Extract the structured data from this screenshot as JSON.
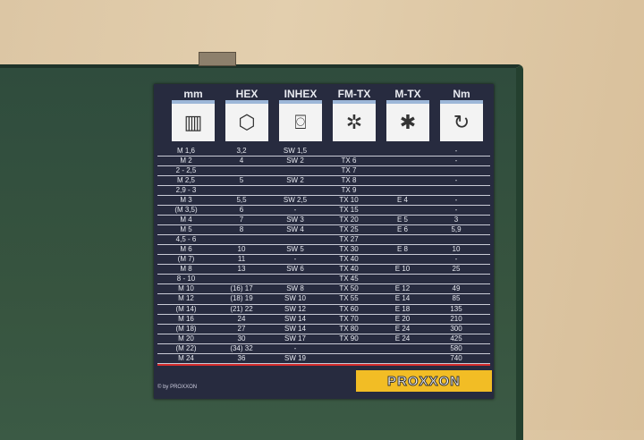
{
  "columns": [
    "mm",
    "HEX",
    "INHEX",
    "FM-TX",
    "M-TX",
    "Nm"
  ],
  "icons": [
    "thread-icon",
    "hex-bolt-icon",
    "inhex-bolt-icon",
    "fm-tx-bolt-icon",
    "m-tx-bolt-icon",
    "torque-icon"
  ],
  "rows": [
    [
      "M 1,6",
      "3,2",
      "SW 1,5",
      "",
      "",
      "-"
    ],
    [
      "M 2",
      "4",
      "SW 2",
      "TX  6",
      "",
      "-"
    ],
    [
      "2 - 2,5",
      "",
      "",
      "TX  7",
      "",
      ""
    ],
    [
      "M 2,5",
      "5",
      "SW 2",
      "TX  8",
      "",
      "-"
    ],
    [
      "2,9 - 3",
      "",
      "",
      "TX  9",
      "",
      ""
    ],
    [
      "M 3",
      "5,5",
      "SW 2,5",
      "TX 10",
      "E 4",
      "-"
    ],
    [
      "(M 3,5)",
      "6",
      "-",
      "TX 15",
      "",
      "-"
    ],
    [
      "M 4",
      "7",
      "SW 3",
      "TX 20",
      "E 5",
      "3"
    ],
    [
      "M 5",
      "8",
      "SW 4",
      "TX 25",
      "E 6",
      "5,9"
    ],
    [
      "4,5 - 6",
      "",
      "",
      "TX 27",
      "",
      ""
    ],
    [
      "M 6",
      "10",
      "SW 5",
      "TX 30",
      "E 8",
      "10"
    ],
    [
      "(M 7)",
      "11",
      "-",
      "TX 40",
      "",
      "-"
    ],
    [
      "M 8",
      "13",
      "SW 6",
      "TX 40",
      "E 10",
      "25"
    ],
    [
      "8 - 10",
      "",
      "",
      "TX 45",
      "",
      ""
    ],
    [
      "M 10",
      "(16) 17",
      "SW 8",
      "TX 50",
      "E 12",
      "49"
    ],
    [
      "M 12",
      "(18) 19",
      "SW 10",
      "TX 55",
      "E 14",
      "85"
    ],
    [
      "(M 14)",
      "(21) 22",
      "SW 12",
      "TX 60",
      "E 18",
      "135"
    ],
    [
      "M 16",
      "24",
      "SW 14",
      "TX 70",
      "E 20",
      "210"
    ],
    [
      "(M 18)",
      "27",
      "SW 14",
      "TX 80",
      "E 24",
      "300"
    ],
    [
      "M 20",
      "30",
      "SW 17",
      "TX 90",
      "E 24",
      "425"
    ],
    [
      "(M 22)",
      "(34) 32",
      "-",
      "",
      "",
      "580"
    ],
    [
      "M 24",
      "36",
      "SW 19",
      "",
      "",
      "740"
    ]
  ],
  "copyright": "© by PROXXON",
  "logo": "PROXXON"
}
